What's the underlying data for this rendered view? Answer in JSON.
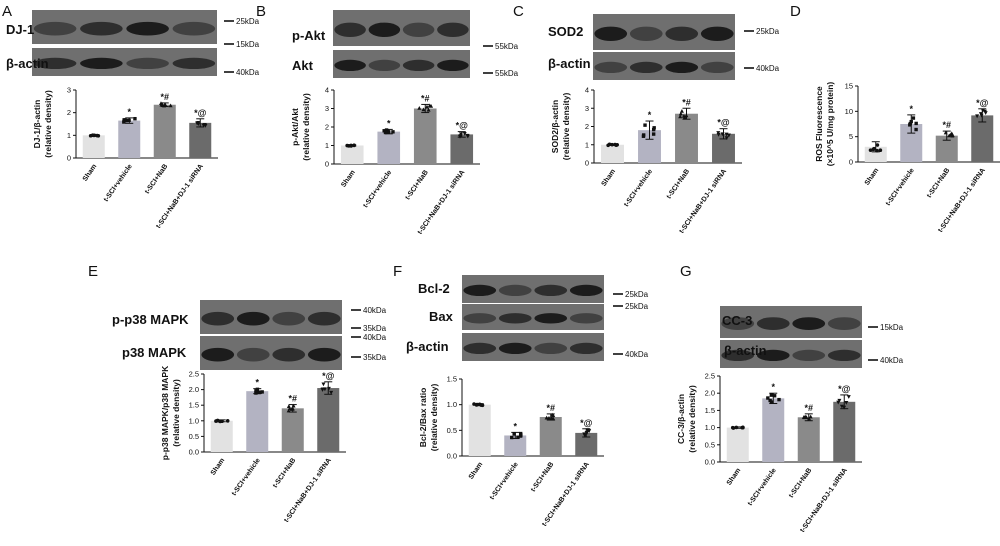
{
  "panels": [
    {
      "id": "A",
      "letter": "A",
      "blots": [
        {
          "name": "DJ-1"
        },
        {
          "name": "β-actin"
        }
      ],
      "kda": [
        {
          "text": "25kDa"
        },
        {
          "text": "15kDa"
        },
        {
          "text": "40kDa"
        }
      ],
      "chart_data": {
        "type": "bar",
        "ylabel": [
          "DJ-1/β-actin",
          "(relative density)"
        ],
        "ylim": [
          0,
          3
        ],
        "yticks": [
          "0",
          "1",
          "2",
          "3"
        ],
        "categories": [
          "Sham",
          "t-SCI+vehicle",
          "t-SCI+NaB",
          "t-SCI+NaB+DJ-1 siRNA"
        ],
        "values": [
          1.0,
          1.65,
          2.35,
          1.55
        ],
        "errors": [
          0.03,
          0.12,
          0.08,
          0.18
        ],
        "sig": [
          "",
          "*",
          "*#",
          "*@"
        ]
      }
    },
    {
      "id": "B",
      "letter": "B",
      "blots": [
        {
          "name": "p-Akt"
        },
        {
          "name": "Akt"
        }
      ],
      "kda": [
        {
          "text": "55kDa"
        },
        {
          "text": "55kDa"
        }
      ],
      "chart_data": {
        "type": "bar",
        "ylabel": [
          "p-Akt/Akt",
          "(relative density)"
        ],
        "ylim": [
          0,
          4
        ],
        "yticks": [
          "0",
          "1",
          "2",
          "3",
          "4"
        ],
        "categories": [
          "Sham",
          "t-SCI+vehicle",
          "t-SCI+NaB",
          "t-SCI+NaB+DJ-1 siRNA"
        ],
        "values": [
          1.0,
          1.75,
          3.0,
          1.6
        ],
        "errors": [
          0.03,
          0.12,
          0.22,
          0.15
        ],
        "sig": [
          "",
          "*",
          "*#",
          "*@"
        ]
      }
    },
    {
      "id": "C",
      "letter": "C",
      "blots": [
        {
          "name": "SOD2"
        },
        {
          "name": "β-actin"
        }
      ],
      "kda": [
        {
          "text": "25kDa"
        },
        {
          "text": "40kDa"
        }
      ],
      "chart_data": {
        "type": "bar",
        "ylabel": [
          "SOD2/β-actin",
          "(relative density)"
        ],
        "ylim": [
          0,
          4
        ],
        "yticks": [
          "0",
          "1",
          "2",
          "3",
          "4"
        ],
        "categories": [
          "Sham",
          "t-SCI+vehicle",
          "t-SCI+NaB",
          "t-SCI+NaB+DJ-1 siRNA"
        ],
        "values": [
          1.0,
          1.8,
          2.7,
          1.6
        ],
        "errors": [
          0.04,
          0.5,
          0.3,
          0.28
        ],
        "sig": [
          "",
          "*",
          "*#",
          "*@"
        ]
      }
    },
    {
      "id": "D",
      "letter": "D",
      "blots": [],
      "kda": [],
      "chart_data": {
        "type": "bar",
        "ylabel": [
          "ROS Fluorescence",
          "(×10^5 U/mg protein)"
        ],
        "ylim": [
          0,
          15
        ],
        "yticks": [
          "0",
          "5",
          "10",
          "15"
        ],
        "categories": [
          "Sham",
          "t-SCI+vehicle",
          "t-SCI+NaB",
          "t-SCI+NaB+DJ-1 siRNA"
        ],
        "values": [
          3.0,
          7.5,
          5.2,
          9.2
        ],
        "errors": [
          1.0,
          1.8,
          0.9,
          1.3
        ],
        "sig": [
          "",
          "*",
          "*#",
          "*@"
        ]
      }
    },
    {
      "id": "E",
      "letter": "E",
      "blots": [
        {
          "name": "p-p38 MAPK"
        },
        {
          "name": "p38 MAPK"
        }
      ],
      "kda": [
        {
          "text": "40kDa"
        },
        {
          "text": "35kDa"
        },
        {
          "text": "40kDa"
        },
        {
          "text": "35kDa"
        }
      ],
      "chart_data": {
        "type": "bar",
        "ylabel": [
          "p-p38 MAPK/p38 MAPK",
          "(relative density)"
        ],
        "ylim": [
          0,
          2.5
        ],
        "yticks": [
          "0.0",
          "0.5",
          "1.0",
          "1.5",
          "2.0",
          "2.5"
        ],
        "categories": [
          "Sham",
          "t-SCI+vehicle",
          "t-SCI+NaB",
          "t-SCI+NaB+DJ-1 siRNA"
        ],
        "values": [
          1.0,
          1.95,
          1.4,
          2.05
        ],
        "errors": [
          0.03,
          0.08,
          0.12,
          0.2
        ],
        "sig": [
          "",
          "*",
          "*#",
          "*@"
        ]
      }
    },
    {
      "id": "F",
      "letter": "F",
      "blots": [
        {
          "name": "Bcl-2"
        },
        {
          "name": "Bax"
        },
        {
          "name": "β-actin"
        }
      ],
      "kda": [
        {
          "text": "25kDa"
        },
        {
          "text": "25kDa"
        },
        {
          "text": "40kDa"
        }
      ],
      "chart_data": {
        "type": "bar",
        "ylabel": [
          "Bcl-2/Bax ratio",
          "(relative density)"
        ],
        "ylim": [
          0,
          1.5
        ],
        "yticks": [
          "0.0",
          "0.5",
          "1.0",
          "1.5"
        ],
        "categories": [
          "Sham",
          "t-SCI+vehicle",
          "t-SCI+NaB",
          "t-SCI+NaB+DJ-1 siRNA"
        ],
        "values": [
          1.0,
          0.4,
          0.76,
          0.45
        ],
        "errors": [
          0.02,
          0.06,
          0.06,
          0.08
        ],
        "sig": [
          "",
          "*",
          "*#",
          "*@"
        ]
      }
    },
    {
      "id": "G",
      "letter": "G",
      "blots": [
        {
          "name": "CC-3"
        },
        {
          "name": "β-actin"
        }
      ],
      "kda": [
        {
          "text": "15kDa"
        },
        {
          "text": "40kDa"
        }
      ],
      "chart_data": {
        "type": "bar",
        "ylabel": [
          "CC-3/β-actin",
          "(relative density)"
        ],
        "ylim": [
          0,
          2.5
        ],
        "yticks": [
          "0.0",
          "0.5",
          "1.0",
          "1.5",
          "2.0",
          "2.5"
        ],
        "categories": [
          "Sham",
          "t-SCI+vehicle",
          "t-SCI+NaB",
          "t-SCI+NaB+DJ-1 siRNA"
        ],
        "values": [
          1.0,
          1.85,
          1.3,
          1.75
        ],
        "errors": [
          0.02,
          0.15,
          0.1,
          0.2
        ],
        "sig": [
          "",
          "*",
          "*#",
          "*@"
        ]
      }
    }
  ],
  "colors": {
    "bars": [
      "#e2e2e2",
      "#b3b3c2",
      "#8a8a8a",
      "#6b6b6b"
    ],
    "blot_bg": "#6f6f6f",
    "band": "#1c1c1c",
    "points": "#111111"
  }
}
